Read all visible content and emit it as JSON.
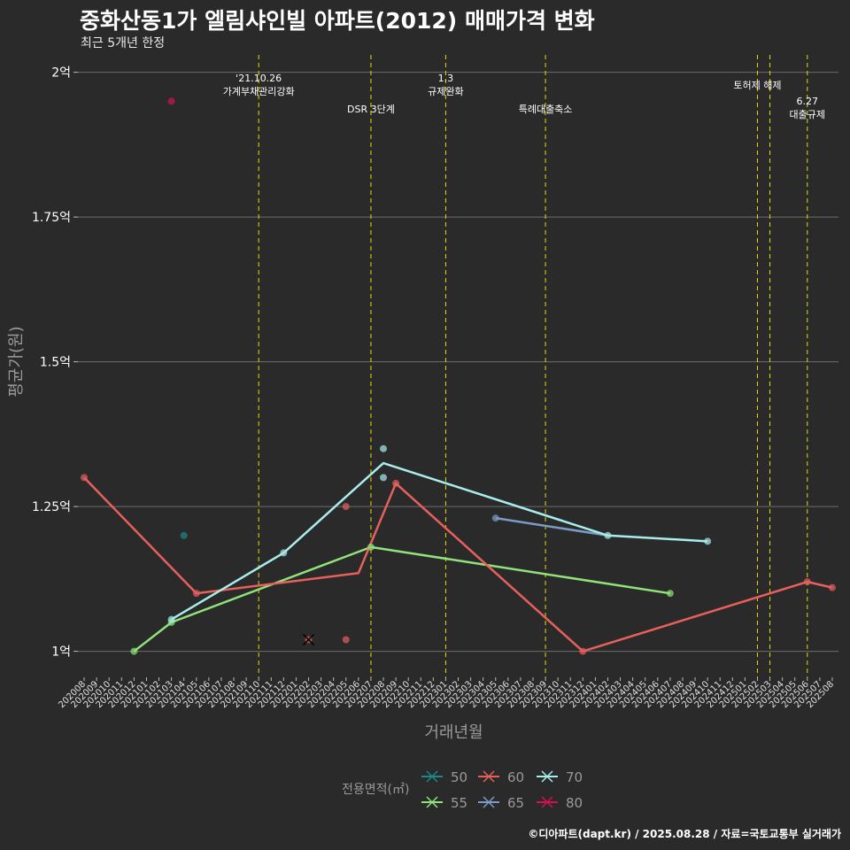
{
  "title": "중화산동1가 엘림샤인빌 아파트(2012) 매매가격 변화",
  "subtitle": "최근 5개년 한정",
  "caption": "©디아파트(dapt.kr) / 2025.08.28 / 자료=국토교통부 실거래가",
  "chart_data": {
    "type": "line",
    "xlabel": "거래년월",
    "ylabel": "평균가(원)",
    "x_categories": [
      "202008",
      "202009",
      "202010",
      "202011",
      "202012",
      "202101",
      "202102",
      "202103",
      "202104",
      "202105",
      "202106",
      "202107",
      "202108",
      "202109",
      "202110",
      "202111",
      "202112",
      "202201",
      "202202",
      "202203",
      "202204",
      "202205",
      "202206",
      "202207",
      "202208",
      "202209",
      "202210",
      "202211",
      "202212",
      "202301",
      "202302",
      "202303",
      "202304",
      "202305",
      "202306",
      "202307",
      "202308",
      "202309",
      "202310",
      "202311",
      "202312",
      "202401",
      "202402",
      "202403",
      "202404",
      "202405",
      "202406",
      "202407",
      "202408",
      "202409",
      "202410",
      "202411",
      "202412",
      "202501",
      "202502",
      "202503",
      "202504",
      "202505",
      "202506",
      "202507",
      "202508"
    ],
    "y_ticks": [
      {
        "value": 1.0,
        "label": "1억"
      },
      {
        "value": 1.25,
        "label": "1.25억"
      },
      {
        "value": 1.5,
        "label": "1.5억"
      },
      {
        "value": 1.75,
        "label": "1.75억"
      },
      {
        "value": 2.0,
        "label": "2억"
      }
    ],
    "ylim": [
      0.955,
      2.03
    ],
    "legend": {
      "title": "전용면적(㎡)",
      "position": "bottom",
      "items": [
        "50",
        "60",
        "70",
        "55",
        "65",
        "80"
      ]
    },
    "series": [
      {
        "name": "50",
        "color": "#1a8a8a",
        "line": [],
        "points": [
          {
            "x": "202104",
            "y": 1.2
          }
        ]
      },
      {
        "name": "55",
        "color": "#8fe37a",
        "line": [
          {
            "x": "202012",
            "y": 1.0
          },
          {
            "x": "202103",
            "y": 1.05
          },
          {
            "x": "202207",
            "y": 1.18
          },
          {
            "x": "202407",
            "y": 1.1
          }
        ],
        "points": [
          {
            "x": "202012",
            "y": 1.0
          },
          {
            "x": "202103",
            "y": 1.05
          },
          {
            "x": "202207",
            "y": 1.18
          },
          {
            "x": "202407",
            "y": 1.1
          }
        ]
      },
      {
        "name": "60",
        "color": "#e8605c",
        "line": [
          {
            "x": "202008",
            "y": 1.3
          },
          {
            "x": "202105",
            "y": 1.1
          },
          {
            "x": "202206",
            "y": 1.135
          },
          {
            "x": "202209",
            "y": 1.29
          },
          {
            "x": "202312",
            "y": 1.0
          },
          {
            "x": "202506",
            "y": 1.12
          },
          {
            "x": "202508",
            "y": 1.11
          }
        ],
        "points": [
          {
            "x": "202008",
            "y": 1.3
          },
          {
            "x": "202105",
            "y": 1.1
          },
          {
            "x": "202205",
            "y": 1.25
          },
          {
            "x": "202205",
            "y": 1.02
          },
          {
            "x": "202209",
            "y": 1.29
          },
          {
            "x": "202312",
            "y": 1.0
          },
          {
            "x": "202506",
            "y": 1.12
          },
          {
            "x": "202508",
            "y": 1.11
          }
        ]
      },
      {
        "name": "65",
        "color": "#7b9bc8",
        "line": [
          {
            "x": "202305",
            "y": 1.23
          },
          {
            "x": "202402",
            "y": 1.2
          }
        ],
        "points": [
          {
            "x": "202305",
            "y": 1.23
          }
        ]
      },
      {
        "name": "70",
        "color": "#a8ecec",
        "line": [
          {
            "x": "202103",
            "y": 1.055
          },
          {
            "x": "202112",
            "y": 1.17
          },
          {
            "x": "202208",
            "y": 1.325
          },
          {
            "x": "202402",
            "y": 1.2
          },
          {
            "x": "202410",
            "y": 1.19
          }
        ],
        "points": [
          {
            "x": "202103",
            "y": 1.055
          },
          {
            "x": "202112",
            "y": 1.17
          },
          {
            "x": "202208",
            "y": 1.35
          },
          {
            "x": "202208",
            "y": 1.3
          },
          {
            "x": "202402",
            "y": 1.2
          },
          {
            "x": "202410",
            "y": 1.19
          }
        ]
      },
      {
        "name": "80",
        "color": "#d6104f",
        "line": [],
        "points": [
          {
            "x": "202103",
            "y": 1.95
          }
        ]
      }
    ],
    "marked_point": {
      "x": "202202",
      "y": 1.02
    },
    "events": [
      {
        "x": "202110",
        "lines": [
          "'21.10.26",
          "가계부채관리강화"
        ],
        "level": 0
      },
      {
        "x": "202207",
        "lines": [
          "DSR 3단계"
        ],
        "level": 2
      },
      {
        "x": "202301",
        "lines": [
          "1.3",
          "규제완화"
        ],
        "level": 0
      },
      {
        "x": "202309",
        "lines": [
          "특례대출축소"
        ],
        "level": 2
      },
      {
        "x": "202502",
        "lines": [
          "토허제 해제"
        ],
        "level": 1
      },
      {
        "x": "202503",
        "lines": [],
        "level": 1
      },
      {
        "x": "202506",
        "lines": [
          "6.27",
          "대출규제"
        ],
        "level": 3
      }
    ]
  }
}
